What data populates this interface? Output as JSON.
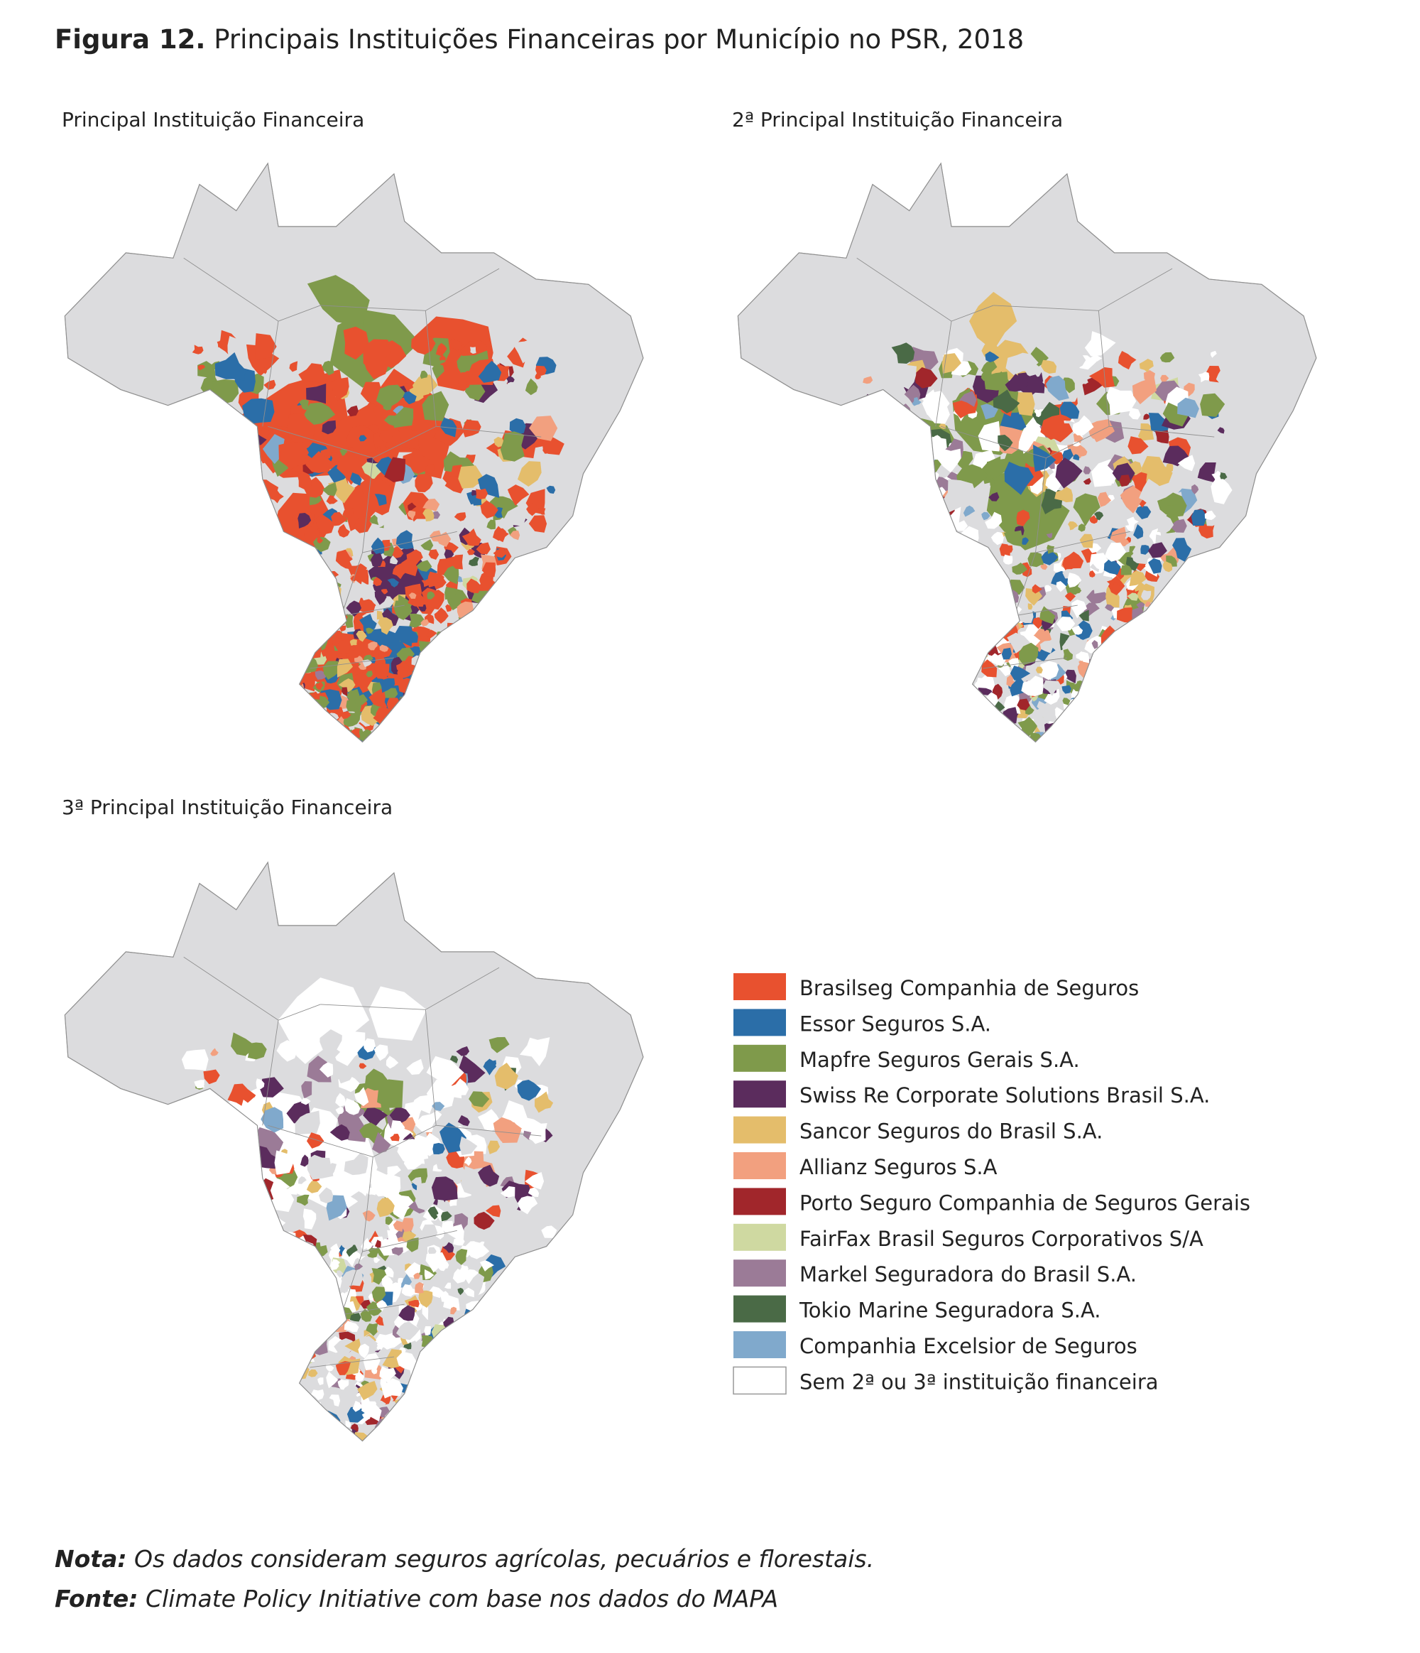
{
  "header": {
    "label": "Figura 12.",
    "title": "Principais Instituições Financeiras por Município no PSR, 2018"
  },
  "maps": [
    {
      "title": "Principal Instituição Financeira"
    },
    {
      "title": "2ª Principal Instituição Financeira"
    },
    {
      "title": "3ª Principal Instituição Financeira"
    }
  ],
  "legend": [
    {
      "label": "Brasilseg Companhia de Seguros",
      "color": "#e8512f"
    },
    {
      "label": "Essor Seguros S.A.",
      "color": "#2b6ea8"
    },
    {
      "label": "Mapfre Seguros Gerais S.A.",
      "color": "#7f9a4b"
    },
    {
      "label": "Swiss Re Corporate Solutions Brasil S.A.",
      "color": "#5b2c5d"
    },
    {
      "label": "Sancor Seguros do Brasil S.A.",
      "color": "#e4bd6b"
    },
    {
      "label": "Allianz Seguros S.A",
      "color": "#f2a07f"
    },
    {
      "label": "Porto Seguro Companhia de Seguros Gerais",
      "color": "#a1262b"
    },
    {
      "label": "FairFax Brasil Seguros Corporativos S/A",
      "color": "#cfd9a1"
    },
    {
      "label": "Markel Seguradora do Brasil S.A.",
      "color": "#9b7b97"
    },
    {
      "label": "Tokio Marine Seguradora S.A.",
      "color": "#4a6a46"
    },
    {
      "label": "Companhia Excelsior de Seguros",
      "color": "#80a9cc"
    },
    {
      "label": "Sem 2ª ou 3ª instituição financeira",
      "color": "#ffffff"
    }
  ],
  "footer": {
    "note_label": "Nota:",
    "note": "Os dados consideram seguros agrícolas, pecuários e florestais.",
    "source_label": "Fonte:",
    "source": "Climate Policy Initiative com base nos dados do MAPA"
  }
}
